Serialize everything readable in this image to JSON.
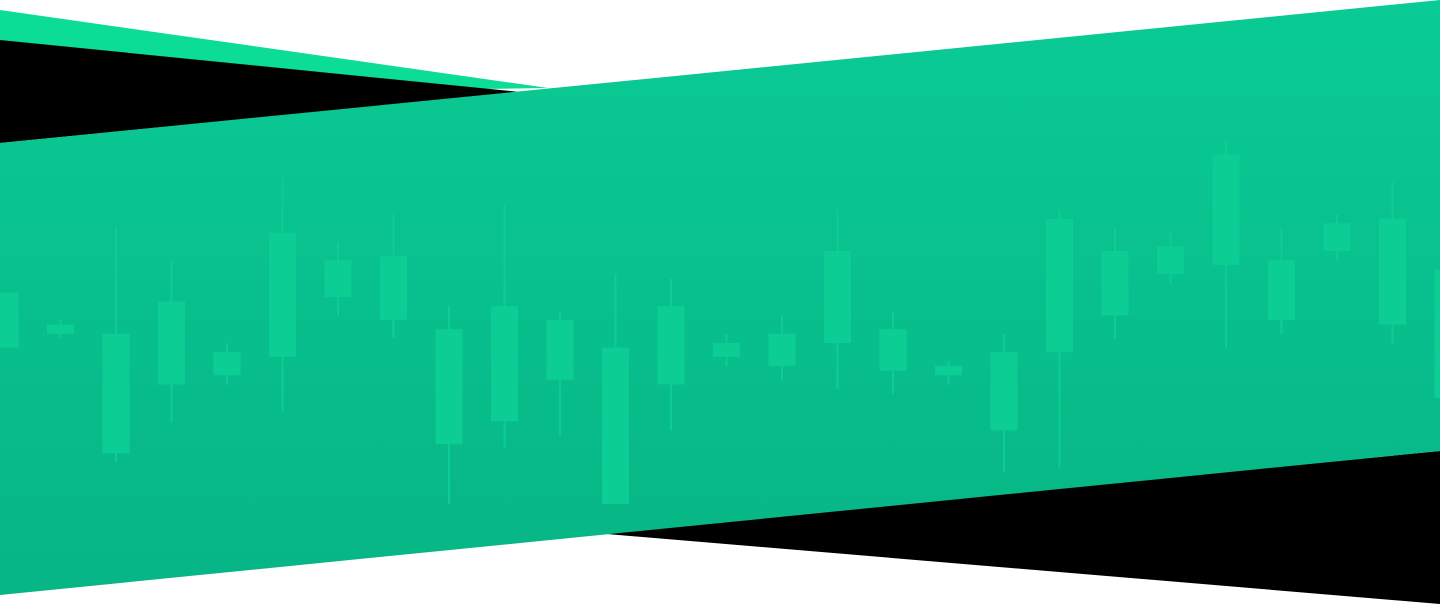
{
  "colors": {
    "background": "#ffffff",
    "dark_shape": "#000000",
    "accent_top": "#0bdd96",
    "band_top": "#0acb95",
    "band_bottom": "#07b585",
    "candle": "#0ccd93"
  },
  "decorative_pattern": "candlestick-chart",
  "candles": [
    {
      "open": 44,
      "close": 56,
      "low": 44,
      "high": 56
    },
    {
      "open": 49,
      "close": 47,
      "low": 46,
      "high": 50
    },
    {
      "open": 21,
      "close": 47,
      "low": 19,
      "high": 70
    },
    {
      "open": 36,
      "close": 54,
      "low": 28,
      "high": 63
    },
    {
      "open": 38,
      "close": 43,
      "low": 36,
      "high": 45
    },
    {
      "open": 42,
      "close": 69,
      "low": 30,
      "high": 81
    },
    {
      "open": 55,
      "close": 63,
      "low": 51,
      "high": 67
    },
    {
      "open": 50,
      "close": 64,
      "low": 46,
      "high": 73
    },
    {
      "open": 23,
      "close": 48,
      "low": 10,
      "high": 53
    },
    {
      "open": 28,
      "close": 53,
      "low": 22,
      "high": 75
    },
    {
      "open": 37,
      "close": 50,
      "low": 25,
      "high": 52
    },
    {
      "open": 10,
      "close": 44,
      "low": 10,
      "high": 60
    },
    {
      "open": 36,
      "close": 53,
      "low": 26,
      "high": 59
    },
    {
      "open": 42,
      "close": 45,
      "low": 40,
      "high": 47
    },
    {
      "open": 40,
      "close": 47,
      "low": 37,
      "high": 51
    },
    {
      "open": 45,
      "close": 65,
      "low": 35,
      "high": 74
    },
    {
      "open": 39,
      "close": 48,
      "low": 34,
      "high": 52
    },
    {
      "open": 38,
      "close": 40,
      "low": 36,
      "high": 41
    },
    {
      "open": 26,
      "close": 43,
      "low": 17,
      "high": 47
    },
    {
      "open": 43,
      "close": 72,
      "low": 18,
      "high": 74
    },
    {
      "open": 51,
      "close": 65,
      "low": 46,
      "high": 70
    },
    {
      "open": 60,
      "close": 66,
      "low": 58,
      "high": 69
    },
    {
      "open": 62,
      "close": 86,
      "low": 44,
      "high": 89
    },
    {
      "open": 50,
      "close": 63,
      "low": 47,
      "high": 70
    },
    {
      "open": 65,
      "close": 71,
      "low": 63,
      "high": 73
    },
    {
      "open": 49,
      "close": 72,
      "low": 45,
      "high": 80
    },
    {
      "open": 33,
      "close": 61,
      "low": 25,
      "high": 80
    }
  ]
}
